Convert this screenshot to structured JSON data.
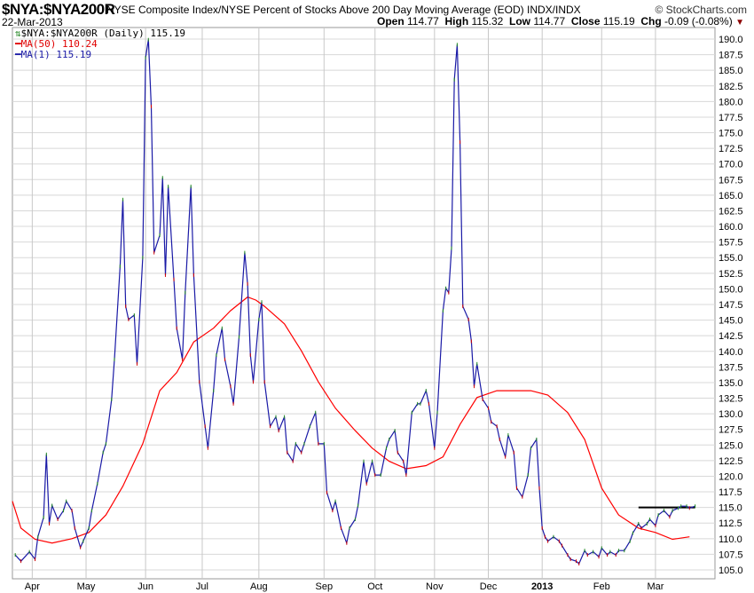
{
  "header": {
    "symbol": "$NYA:$NYA200R",
    "description": "NYSE Composite Index/NYSE Percent of Stocks Above 200 Day Moving Average (EOD)  INDX/INDX",
    "brand": "© StockCharts.com",
    "date": "22-Mar-2013",
    "open_label": "Open",
    "open": "114.77",
    "high_label": "High",
    "high": "115.32",
    "low_label": "Low",
    "low": "114.77",
    "close_label": "Close",
    "close": "115.19",
    "chg_label": "Chg",
    "chg": "-0.09 (-0.08%)"
  },
  "legend": {
    "main": "$NYA:$NYA200R (Daily) 115.19",
    "ma50": "MA(50) 110.24",
    "ma1": "MA(1) 115.19"
  },
  "colors": {
    "price": "#1a1aa6",
    "ma50": "#ff0000",
    "grid": "#d8d8d8",
    "resistance": "#000000"
  },
  "chart_data": {
    "type": "line",
    "title": "$NYA:$NYA200R",
    "xlabel": "",
    "ylabel": "",
    "ylim": [
      104,
      192
    ],
    "xlim": [
      0,
      248
    ],
    "y_ticks": [
      "105.0",
      "107.5",
      "110.0",
      "112.5",
      "115.0",
      "117.5",
      "120.0",
      "122.5",
      "125.0",
      "127.5",
      "130.0",
      "132.5",
      "135.0",
      "137.5",
      "140.0",
      "142.5",
      "145.0",
      "147.5",
      "150.0",
      "152.5",
      "155.0",
      "157.5",
      "160.0",
      "162.5",
      "165.0",
      "167.5",
      "170.0",
      "172.5",
      "175.0",
      "177.5",
      "180.0",
      "182.5",
      "185.0",
      "187.5",
      "190.0"
    ],
    "x_ticks": [
      {
        "label": "Apr",
        "x": 7
      },
      {
        "label": "May",
        "x": 26
      },
      {
        "label": "Jun",
        "x": 47
      },
      {
        "label": "Jul",
        "x": 67
      },
      {
        "label": "Aug",
        "x": 87
      },
      {
        "label": "Sep",
        "x": 110
      },
      {
        "label": "Oct",
        "x": 128
      },
      {
        "label": "Nov",
        "x": 149
      },
      {
        "label": "Dec",
        "x": 168
      },
      {
        "label": "2013",
        "x": 187,
        "bold": true
      },
      {
        "label": "Feb",
        "x": 208
      },
      {
        "label": "Mar",
        "x": 227
      }
    ],
    "series": [
      {
        "name": "MA(1)",
        "x": [
          1,
          3,
          6,
          8,
          9,
          11,
          12,
          13,
          14,
          16,
          18,
          19,
          21,
          22,
          24,
          25,
          27,
          28,
          30,
          32,
          33,
          35,
          36,
          38,
          39,
          40,
          41,
          43,
          44,
          46,
          47,
          48,
          49,
          50,
          52,
          53,
          54,
          55,
          57,
          58,
          60,
          61,
          63,
          64,
          66,
          68,
          69,
          71,
          72,
          74,
          75,
          77,
          78,
          80,
          82,
          83,
          84,
          85,
          87,
          88,
          89,
          91,
          93,
          94,
          96,
          97,
          99,
          100,
          102,
          103,
          105,
          107,
          108,
          110,
          111,
          113,
          114,
          116,
          118,
          119,
          121,
          122,
          124,
          125,
          127,
          128,
          130,
          132,
          133,
          135,
          136,
          138,
          139,
          141,
          143,
          144,
          146,
          147,
          149,
          150,
          152,
          153,
          154,
          155,
          156,
          157,
          158,
          159,
          161,
          162,
          163,
          164,
          166,
          168,
          169,
          171,
          172,
          174,
          175,
          177,
          178,
          180,
          182,
          183,
          185,
          186,
          187,
          188,
          189,
          191,
          193,
          194,
          196,
          197,
          199,
          200,
          202,
          203,
          205,
          207,
          208,
          210,
          211,
          213,
          214,
          216,
          218,
          219,
          221,
          222,
          224,
          225,
          227,
          228,
          230,
          232,
          233,
          235,
          236,
          238,
          239,
          241
        ],
        "values": [
          107.4,
          106.4,
          107.9,
          106.7,
          110.3,
          113.4,
          123.5,
          112.4,
          115.3,
          113.1,
          114.5,
          116.0,
          114.5,
          111.7,
          108.6,
          109.6,
          111.7,
          114.5,
          118.8,
          123.8,
          125.2,
          132.3,
          138.7,
          153.6,
          164.3,
          147.2,
          145.1,
          145.8,
          138.0,
          155.0,
          187.0,
          189.9,
          179.2,
          155.8,
          158.6,
          167.8,
          152.2,
          166.4,
          151.5,
          143.7,
          138.7,
          149.4,
          166.4,
          152.2,
          135.1,
          128.0,
          124.5,
          133.7,
          139.4,
          143.7,
          138.7,
          134.4,
          131.6,
          142.3,
          155.8,
          150.8,
          139.4,
          135.1,
          145.1,
          147.9,
          135.1,
          128.0,
          129.5,
          127.3,
          129.5,
          123.8,
          122.4,
          125.2,
          123.8,
          125.2,
          128.0,
          130.2,
          125.2,
          125.2,
          117.4,
          114.5,
          116.0,
          111.7,
          109.3,
          111.7,
          113.1,
          115.3,
          122.4,
          118.8,
          122.4,
          120.2,
          120.2,
          124.5,
          125.9,
          127.3,
          123.8,
          122.4,
          120.2,
          130.2,
          131.6,
          131.6,
          133.7,
          131.6,
          124.5,
          130.2,
          146.5,
          150.1,
          149.4,
          156.5,
          183.5,
          189.1,
          173.5,
          147.2,
          145.1,
          141.6,
          134.4,
          138.0,
          132.3,
          130.9,
          128.7,
          128.0,
          125.9,
          123.1,
          126.6,
          123.8,
          118.1,
          116.7,
          120.2,
          124.5,
          125.9,
          118.1,
          111.7,
          110.3,
          109.6,
          110.3,
          109.6,
          108.9,
          107.4,
          106.7,
          106.4,
          106.0,
          108.1,
          107.4,
          107.9,
          107.1,
          108.5,
          107.4,
          107.9,
          107.4,
          108.1,
          108.1,
          109.6,
          110.9,
          112.4,
          111.7,
          112.4,
          113.1,
          112.1,
          113.8,
          114.5,
          113.5,
          114.5,
          114.9,
          115.2,
          115.2,
          114.9,
          115.2
        ]
      },
      {
        "name": "MA(50)",
        "x": [
          0,
          3,
          8,
          14,
          21,
          27,
          33,
          39,
          46,
          52,
          58,
          64,
          71,
          77,
          83,
          86,
          89,
          96,
          102,
          108,
          114,
          121,
          127,
          133,
          139,
          146,
          152,
          158,
          164,
          171,
          177,
          183,
          189,
          196,
          202,
          208,
          214,
          221,
          227,
          233,
          239
        ],
        "values": [
          116.0,
          111.7,
          109.9,
          109.3,
          110.0,
          111.0,
          113.8,
          118.4,
          125.2,
          133.7,
          136.6,
          141.5,
          143.7,
          146.5,
          148.7,
          148.2,
          147.2,
          144.4,
          140.1,
          135.1,
          130.9,
          127.3,
          124.5,
          122.4,
          121.2,
          121.7,
          123.1,
          128.3,
          132.6,
          133.7,
          133.7,
          133.7,
          133.0,
          130.2,
          125.9,
          118.1,
          113.8,
          111.7,
          111.0,
          109.9,
          110.3
        ]
      },
      {
        "name": "Resistance",
        "x": [
          221,
          241
        ],
        "values": [
          115.0,
          115.0
        ]
      }
    ]
  }
}
